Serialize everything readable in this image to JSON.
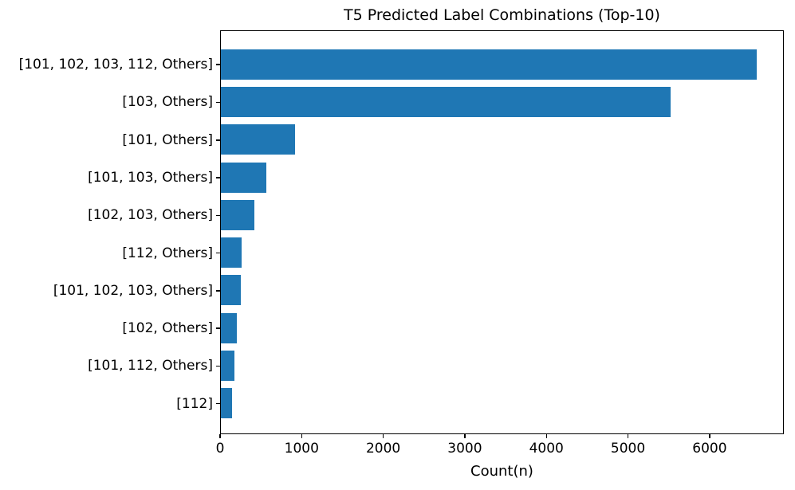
{
  "chart_data": {
    "type": "bar",
    "orientation": "horizontal",
    "title": "T5 Predicted Label Combinations (Top-10)",
    "xlabel": "Count(n)",
    "ylabel": "",
    "categories": [
      "[101, 102, 103, 112, Others]",
      "[103, Others]",
      "[101, Others]",
      "[101, 103, Others]",
      "[102, 103, Others]",
      "[112, Others]",
      "[101, 102, 103, Others]",
      "[102, Others]",
      "[101, 112, Others]",
      "[112]"
    ],
    "values": [
      6600,
      5540,
      910,
      557,
      413,
      257,
      244,
      195,
      166,
      137
    ],
    "xticks": [
      0,
      1000,
      2000,
      3000,
      4000,
      5000,
      6000
    ],
    "xlim": [
      0,
      6910
    ],
    "grid": false,
    "legend_position": "none",
    "bar_color": "#1f77b4"
  },
  "colors": {
    "bar": "#1f77b4",
    "axis": "#000000",
    "text": "#000000",
    "background": "#ffffff"
  }
}
